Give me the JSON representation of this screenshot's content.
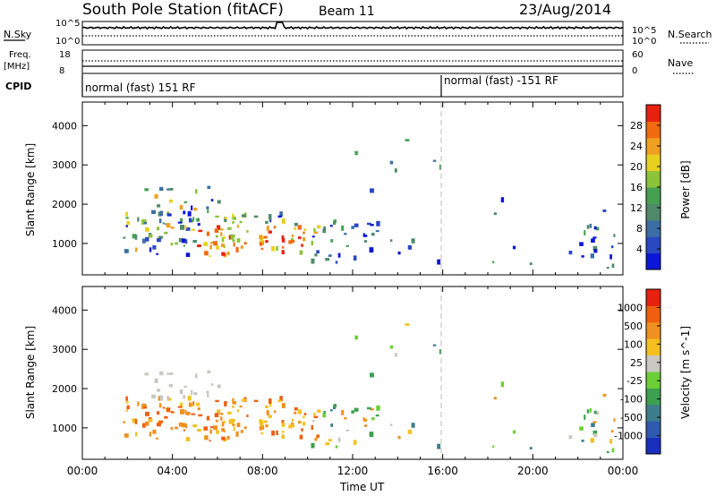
{
  "header": {
    "station": "South Pole Station (fitACF)",
    "beam": "Beam 11",
    "date": "23/Aug/2014"
  },
  "top_panels": {
    "nsky_label": "N.Sky",
    "nsky_ticks": [
      "10^5",
      "10^0"
    ],
    "nsearch_label": "N.Search",
    "nsearch_ticks": [
      "10^5",
      "10^0"
    ],
    "freq_label_line1": "Freq.",
    "freq_label_line2": "[MHz]",
    "freq_ticks": [
      "18",
      "8"
    ],
    "nave_label": "Nave",
    "nave_ticks": [
      "60",
      "0"
    ],
    "cpid_label": "CPID",
    "cpid_segments": [
      {
        "text": "normal (fast) 151 RF",
        "start_hour": 0
      },
      {
        "text": "normal (fast) -151 RF",
        "start_hour": 16
      }
    ]
  },
  "chart_data": [
    {
      "type": "heatmap",
      "ylabel": "Slant Range [km]",
      "xlim": [
        0,
        24
      ],
      "ylim": [
        200,
        4600
      ],
      "yticks": [
        "4000",
        "3000",
        "2000",
        "1000"
      ],
      "colorbar": {
        "label": "Power [dB]",
        "ticks": [
          "28",
          "24",
          "20",
          "16",
          "12",
          "8",
          "4"
        ],
        "colors": [
          "#0b16d8",
          "#2a48c0",
          "#3a6ea4",
          "#4f8a6a",
          "#46a052",
          "#8bc33a",
          "#e8d020",
          "#f0a020",
          "#f06a10",
          "#e82010"
        ]
      }
    },
    {
      "type": "heatmap",
      "ylabel": "Slant Range [km]",
      "xlim": [
        0,
        24
      ],
      "ylim": [
        200,
        4600
      ],
      "yticks": [
        "4000",
        "3000",
        "2000",
        "1000"
      ],
      "xlabel": "Time UT",
      "xticks": [
        "00:00",
        "04:00",
        "08:00",
        "12:00",
        "16:00",
        "20:00",
        "00:00"
      ],
      "colorbar": {
        "label": "Velocity [m s^-1]",
        "ticks": [
          "1000",
          "500",
          "100",
          "25",
          "-25",
          "-100",
          "-500",
          "-1000"
        ],
        "colors": [
          "#1a2ec0",
          "#2f5ab0",
          "#3d7e8c",
          "#3da050",
          "#6ccf38",
          "#c8c8c0",
          "#f4c020",
          "#f09020",
          "#f06010",
          "#e82010"
        ]
      }
    }
  ]
}
